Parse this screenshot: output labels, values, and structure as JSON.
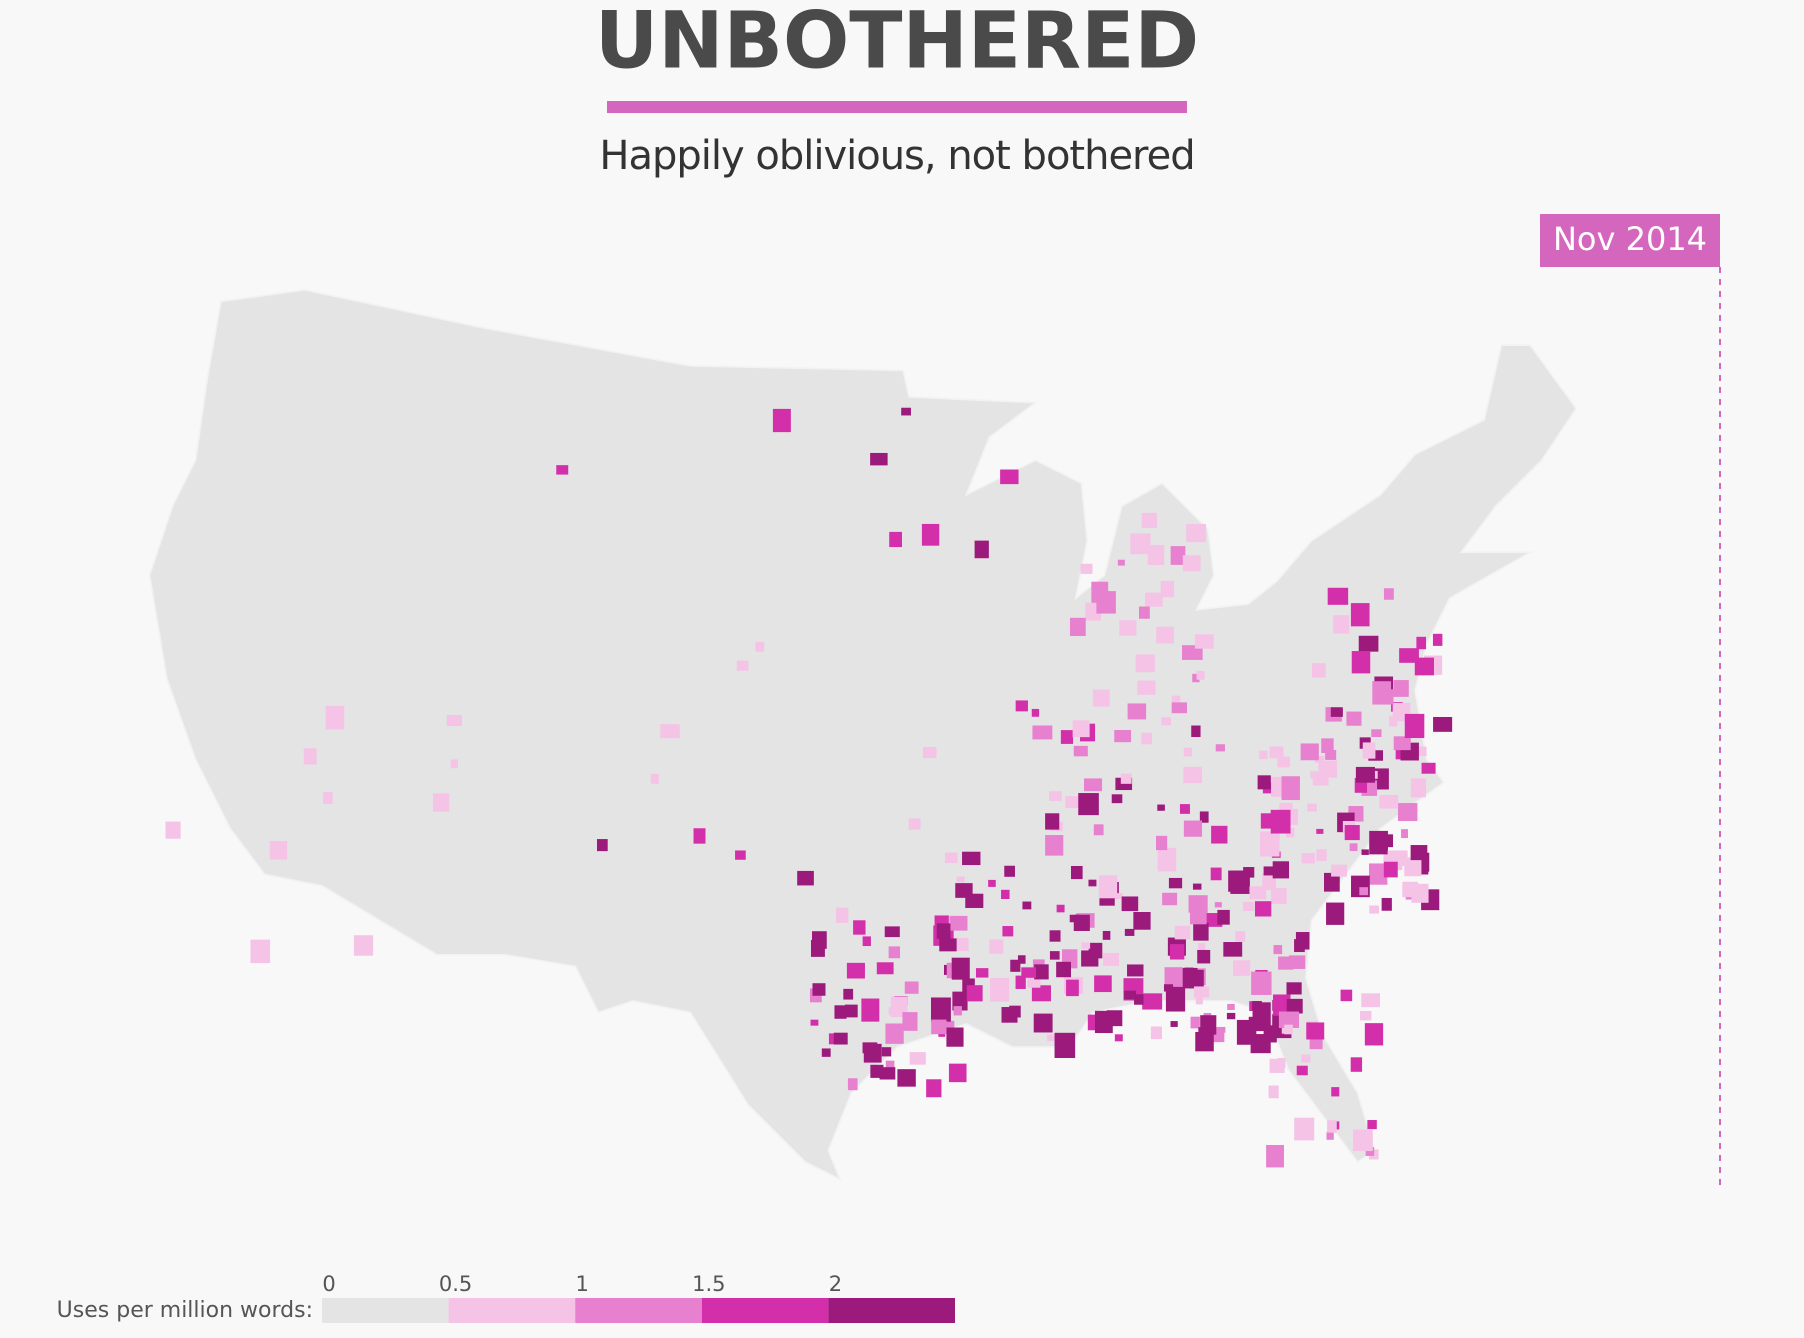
{
  "title": "UNBOTHERED",
  "subtitle": "Happily oblivious, not bothered",
  "date": "Nov 2014",
  "legend": {
    "label": "Uses per million words:",
    "ticks": [
      0,
      0.5,
      1,
      1.5,
      2
    ],
    "colors": [
      "#e4e4e4",
      "#f4c3e6",
      "#e680cf",
      "#d42fab",
      "#9b1a7c"
    ]
  }
}
